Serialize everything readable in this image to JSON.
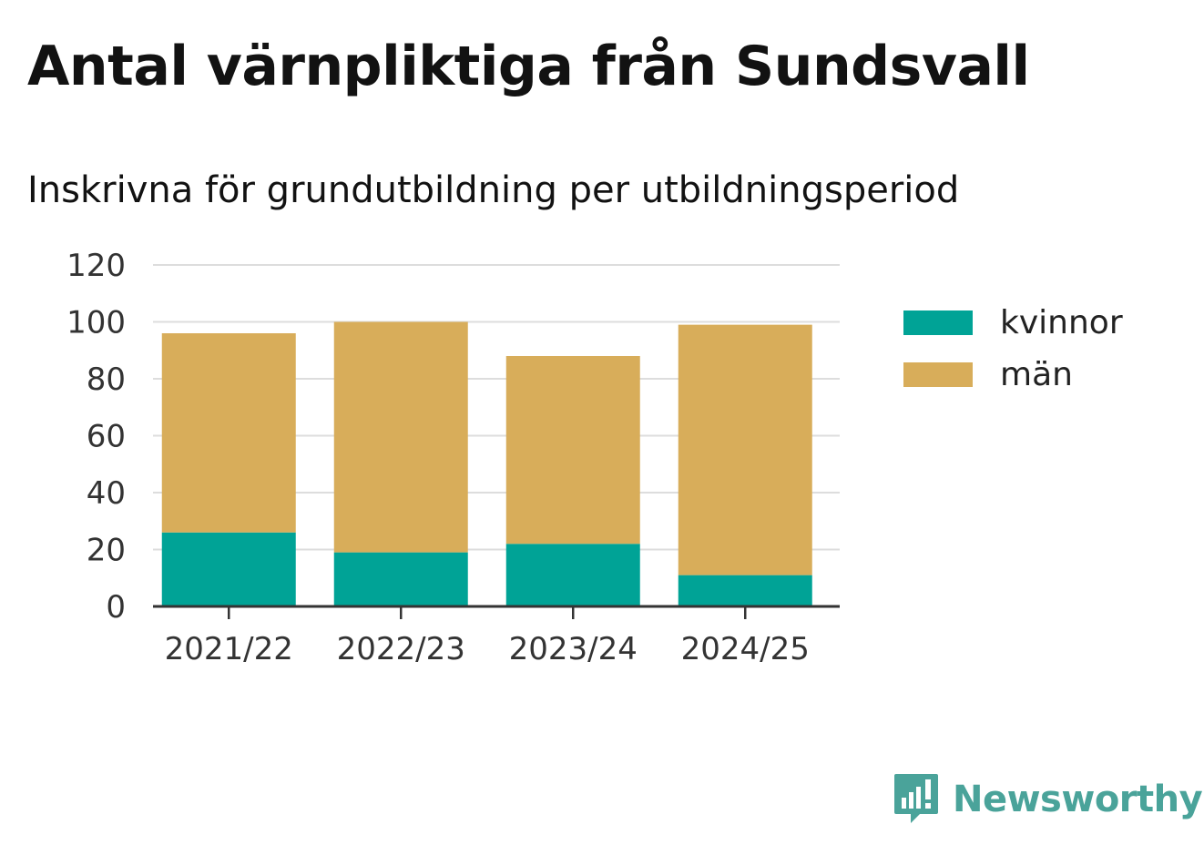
{
  "title": "Antal värnpliktiga från Sundsvall",
  "subtitle": "Inskrivna för grundutbildning per utbildningsperiod",
  "brand": {
    "name": "Newsworthy",
    "icon": "newsworthy-logo-icon",
    "color": "#4aa39a"
  },
  "colors": {
    "kvinnor": "#00a396",
    "man": "#d8ad5a",
    "grid": "#dddddd",
    "axis": "#333333"
  },
  "chart_data": {
    "type": "bar",
    "stacked": true,
    "title": "Antal värnpliktiga från Sundsvall",
    "subtitle": "Inskrivna för grundutbildning per utbildningsperiod",
    "xlabel": "",
    "ylabel": "",
    "categories": [
      "2021/22",
      "2022/23",
      "2023/24",
      "2024/25"
    ],
    "series": [
      {
        "name": "kvinnor",
        "values": [
          26,
          19,
          22,
          11
        ]
      },
      {
        "name": "män",
        "values": [
          70,
          81,
          66,
          88
        ]
      }
    ],
    "ylim": [
      0,
      120
    ],
    "yticks": [
      0,
      20,
      40,
      60,
      80,
      100,
      120
    ],
    "grid": true,
    "legend_position": "right"
  }
}
